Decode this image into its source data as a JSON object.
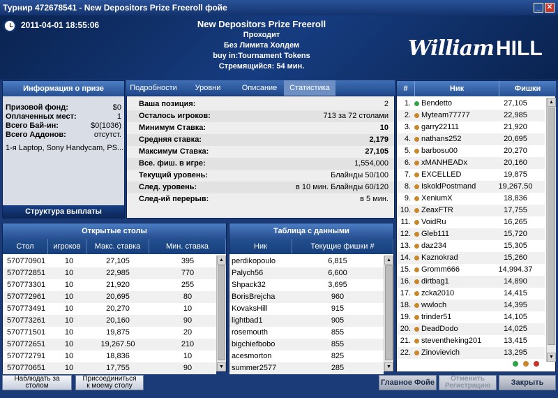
{
  "window": {
    "title": "Турнир 472678541 - New Depositors Prize Freeroll фойе",
    "minimize": "_",
    "close": "✕"
  },
  "header": {
    "datetime": "2011-04-01 18:55:06",
    "lines": [
      "New Depositors Prize Freeroll",
      "Проходит",
      "Без Лимита Холдем",
      "buy in:Tournament Tokens",
      "Стремящийся: 54 мин."
    ],
    "logo_script": "William",
    "logo_block": "HILL"
  },
  "prize": {
    "title": "Информация о призе",
    "rows": [
      {
        "label": "Призовой фонд:",
        "value": "$0"
      },
      {
        "label": "Оплаченных мест:",
        "value": "1"
      },
      {
        "label": "Всего Бай-ин:",
        "value": "$0(1036)"
      },
      {
        "label": "Всего Аддонов:",
        "value": "отсутст."
      }
    ],
    "description": "1-я Laptop, Sony Handycam, PS...",
    "structure_label": "Структура выплаты"
  },
  "tabs": [
    "Подробности",
    "Уровни",
    "Описание",
    "Статистика"
  ],
  "stats": [
    {
      "label": "Ваша позиция:",
      "value": "2",
      "bold": false
    },
    {
      "label": "Осталось игроков:",
      "value": "713 за 72 столами",
      "bold": false
    },
    {
      "label": "Минимум Ставка:",
      "value": "10",
      "bold": true
    },
    {
      "label": "Средняя ставка:",
      "value": "2,179",
      "bold": true
    },
    {
      "label": "Максимум Ставка:",
      "value": "27,105",
      "bold": true
    },
    {
      "label": "Все. фиш. в игре:",
      "value": "1,554,000",
      "bold": false
    },
    {
      "label": "Текущий уровень:",
      "value": "Блайнды 50/100",
      "bold": false
    },
    {
      "label": "След. уровень:",
      "value": "в 10 мин. Блайнды 60/120",
      "bold": false
    },
    {
      "label": "След-ий перерыв:",
      "value": "в 5 мин.",
      "bold": false
    }
  ],
  "players": {
    "headers": [
      "#",
      "Ник",
      "Фишки"
    ],
    "rows": [
      {
        "n": "1.",
        "name": "Bendetto",
        "chips": "27,105",
        "status": "green"
      },
      {
        "n": "2.",
        "name": "Myteam77777",
        "chips": "22,985",
        "status": "orange"
      },
      {
        "n": "3.",
        "name": "garry22111",
        "chips": "21,920",
        "status": "orange"
      },
      {
        "n": "4.",
        "name": "nathans252",
        "chips": "20,695",
        "status": "orange"
      },
      {
        "n": "5.",
        "name": "barbosu00",
        "chips": "20,270",
        "status": "orange"
      },
      {
        "n": "6.",
        "name": "xMANHEADx",
        "chips": "20,160",
        "status": "orange"
      },
      {
        "n": "7.",
        "name": "EXCELLED",
        "chips": "19,875",
        "status": "orange"
      },
      {
        "n": "8.",
        "name": "IskoldPostmand",
        "chips": "19,267.50",
        "status": "orange"
      },
      {
        "n": "9.",
        "name": "XeniumX",
        "chips": "18,836",
        "status": "orange"
      },
      {
        "n": "10.",
        "name": "ZeaxFTR",
        "chips": "17,755",
        "status": "orange"
      },
      {
        "n": "11.",
        "name": "VoidRu",
        "chips": "16,265",
        "status": "orange"
      },
      {
        "n": "12.",
        "name": "Gleb111",
        "chips": "15,720",
        "status": "orange"
      },
      {
        "n": "13.",
        "name": "daz234",
        "chips": "15,305",
        "status": "orange"
      },
      {
        "n": "14.",
        "name": "Kaznokrad",
        "chips": "15,260",
        "status": "orange"
      },
      {
        "n": "15.",
        "name": "Gromm666",
        "chips": "14,994.37",
        "status": "orange"
      },
      {
        "n": "16.",
        "name": "dirtbag1",
        "chips": "14,890",
        "status": "orange"
      },
      {
        "n": "17.",
        "name": "zcka2010",
        "chips": "14,415",
        "status": "orange"
      },
      {
        "n": "18.",
        "name": "wwloch",
        "chips": "14,395",
        "status": "orange"
      },
      {
        "n": "19.",
        "name": "trinder51",
        "chips": "14,105",
        "status": "orange"
      },
      {
        "n": "20.",
        "name": "DeadDodo",
        "chips": "14,025",
        "status": "orange"
      },
      {
        "n": "21.",
        "name": "steventheking201",
        "chips": "13,415",
        "status": "orange"
      },
      {
        "n": "22.",
        "name": "Zinovievich",
        "chips": "13,295",
        "status": "orange"
      }
    ],
    "light_colors": [
      "#2ea34a",
      "#c8872a",
      "#c8352b"
    ]
  },
  "open_tables": {
    "title": "Открытые столы",
    "headers": [
      "Стол",
      "игроков",
      "Макс. ставка",
      "Мин. ставка"
    ],
    "rows": [
      [
        "570770901",
        "10",
        "27,105",
        "395"
      ],
      [
        "570772851",
        "10",
        "22,985",
        "770"
      ],
      [
        "570773301",
        "10",
        "21,920",
        "255"
      ],
      [
        "570772961",
        "10",
        "20,695",
        "80"
      ],
      [
        "570773491",
        "10",
        "20,270",
        "10"
      ],
      [
        "570773261",
        "10",
        "20,160",
        "90"
      ],
      [
        "570771501",
        "10",
        "19,875",
        "20"
      ],
      [
        "570772651",
        "10",
        "19,267.50",
        "210"
      ],
      [
        "570772791",
        "10",
        "18,836",
        "10"
      ],
      [
        "570770651",
        "10",
        "17,755",
        "90"
      ]
    ]
  },
  "data_table": {
    "title": "Таблица с данными",
    "headers": [
      "Ник",
      "Текущие фишки #"
    ],
    "rows": [
      [
        "perdikopoulo",
        "6,815"
      ],
      [
        "Palych56",
        "6,600"
      ],
      [
        "Shpack32",
        "3,695"
      ],
      [
        "BorisBrejcha",
        "960"
      ],
      [
        "KovaksHill",
        "915"
      ],
      [
        "lightbad1",
        "905"
      ],
      [
        "rosemouth",
        "855"
      ],
      [
        "bigchiefbobo",
        "855"
      ],
      [
        "acesmorton",
        "825"
      ],
      [
        "summer2577",
        "285"
      ]
    ]
  },
  "buttons": {
    "watch": "Наблюдать за столом",
    "join_line1": "Присоединиться",
    "join_line2": "к моему столу",
    "lobby": "Главное Фойе",
    "unreg_line1": "Отменить",
    "unreg_line2": "Регистрацию",
    "close": "Закрыть"
  }
}
